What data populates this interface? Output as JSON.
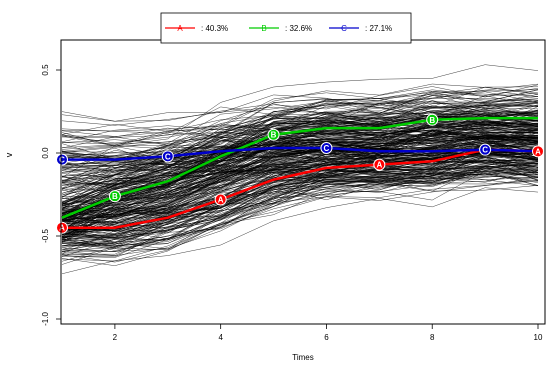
{
  "chart_data": {
    "type": "line",
    "xlabel": "Times",
    "ylabel": "v",
    "xlim": [
      1,
      10
    ],
    "ylim": [
      -1,
      0.6
    ],
    "x_ticks": [
      "2",
      "4",
      "6",
      "8",
      "10"
    ],
    "y_ticks": [
      "-1.0",
      "-0.5",
      "0.0",
      "0.5"
    ],
    "legend_position": "top-center",
    "background_trajectories": {
      "color": "#000000",
      "description": "individual trajectories"
    },
    "series": [
      {
        "name": ": 40.3%",
        "marker": "A",
        "color": "#ff0000",
        "x": [
          1,
          2,
          3,
          4,
          5,
          6,
          7,
          8,
          9,
          10
        ],
        "y": [
          -0.45,
          -0.45,
          -0.39,
          -0.28,
          -0.16,
          -0.09,
          -0.07,
          -0.05,
          0.02,
          0.01
        ]
      },
      {
        "name": ": 32.6%",
        "marker": "B",
        "color": "#00cc00",
        "x": [
          1,
          2,
          3,
          4,
          5,
          6,
          7,
          8,
          9,
          10
        ],
        "y": [
          -0.39,
          -0.26,
          -0.17,
          -0.02,
          0.11,
          0.15,
          0.15,
          0.2,
          0.21,
          0.21
        ]
      },
      {
        "name": ": 27.1%",
        "marker": "C",
        "color": "#0000cc",
        "x": [
          1,
          2,
          3,
          4,
          5,
          6,
          7,
          8,
          9,
          10
        ],
        "y": [
          -0.04,
          -0.04,
          -0.02,
          0.01,
          0.03,
          0.03,
          0.01,
          0.01,
          0.02,
          0.01
        ]
      }
    ]
  }
}
